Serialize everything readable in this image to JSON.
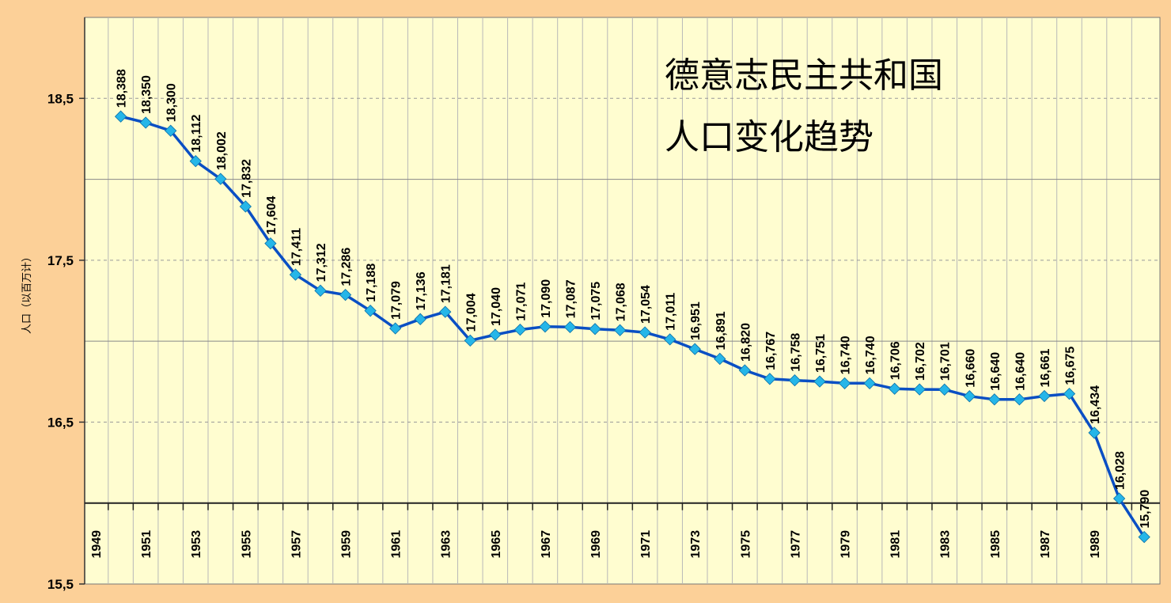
{
  "chart_data": {
    "type": "line",
    "title": [
      "德意志民主共和国",
      "人口变化趋势"
    ],
    "ylabel": "人口（以百万计）",
    "xlabel": "",
    "ylim": [
      15.5,
      19.0
    ],
    "yticks": [
      15.5,
      16.5,
      17.5,
      18.5
    ],
    "ytick_labels": [
      "15,5",
      "16,5",
      "17,5",
      "18,5"
    ],
    "xtick_labels": [
      "1949",
      "1951",
      "1953",
      "1955",
      "1957",
      "1959",
      "1961",
      "1963",
      "1965",
      "1967",
      "1969",
      "1971",
      "1973",
      "1975",
      "1977",
      "1979",
      "1981",
      "1983",
      "1985",
      "1987",
      "1989"
    ],
    "grid": true,
    "line_color": "#0a4fc4",
    "marker_color": "#25b6e8",
    "plot_background": "#fffdd0",
    "series": [
      {
        "x": [
          1950,
          1951,
          1952,
          1953,
          1954,
          1955,
          1956,
          1957,
          1958,
          1959,
          1960,
          1961,
          1962,
          1963,
          1964,
          1965,
          1966,
          1967,
          1968,
          1969,
          1970,
          1971,
          1972,
          1973,
          1974,
          1975,
          1976,
          1977,
          1978,
          1979,
          1980,
          1981,
          1982,
          1983,
          1984,
          1985,
          1986,
          1987,
          1988,
          1989,
          1990,
          1991
        ],
        "values": [
          18.388,
          18.35,
          18.3,
          18.112,
          18.002,
          17.832,
          17.604,
          17.411,
          17.312,
          17.286,
          17.188,
          17.079,
          17.136,
          17.181,
          17.004,
          17.04,
          17.071,
          17.09,
          17.087,
          17.075,
          17.068,
          17.054,
          17.011,
          16.951,
          16.891,
          16.82,
          16.767,
          16.758,
          16.751,
          16.74,
          16.74,
          16.706,
          16.702,
          16.701,
          16.66,
          16.64,
          16.64,
          16.661,
          16.675,
          16.434,
          16.028,
          15.79
        ],
        "labels": [
          "18,388",
          "18,350",
          "18,300",
          "18,112",
          "18,002",
          "17,832",
          "17,604",
          "17,411",
          "17,312",
          "17,286",
          "17,188",
          "17,079",
          "17,136",
          "17,181",
          "17,004",
          "17,040",
          "17,071",
          "17,090",
          "17,087",
          "17,075",
          "17,068",
          "17,054",
          "17,011",
          "16,951",
          "16,891",
          "16,820",
          "16,767",
          "16,758",
          "16,751",
          "16,740",
          "16,740",
          "16,706",
          "16,702",
          "16,701",
          "16,660",
          "16,640",
          "16,640",
          "16,661",
          "16,675",
          "16,434",
          "16,028",
          "15,790"
        ]
      }
    ]
  }
}
